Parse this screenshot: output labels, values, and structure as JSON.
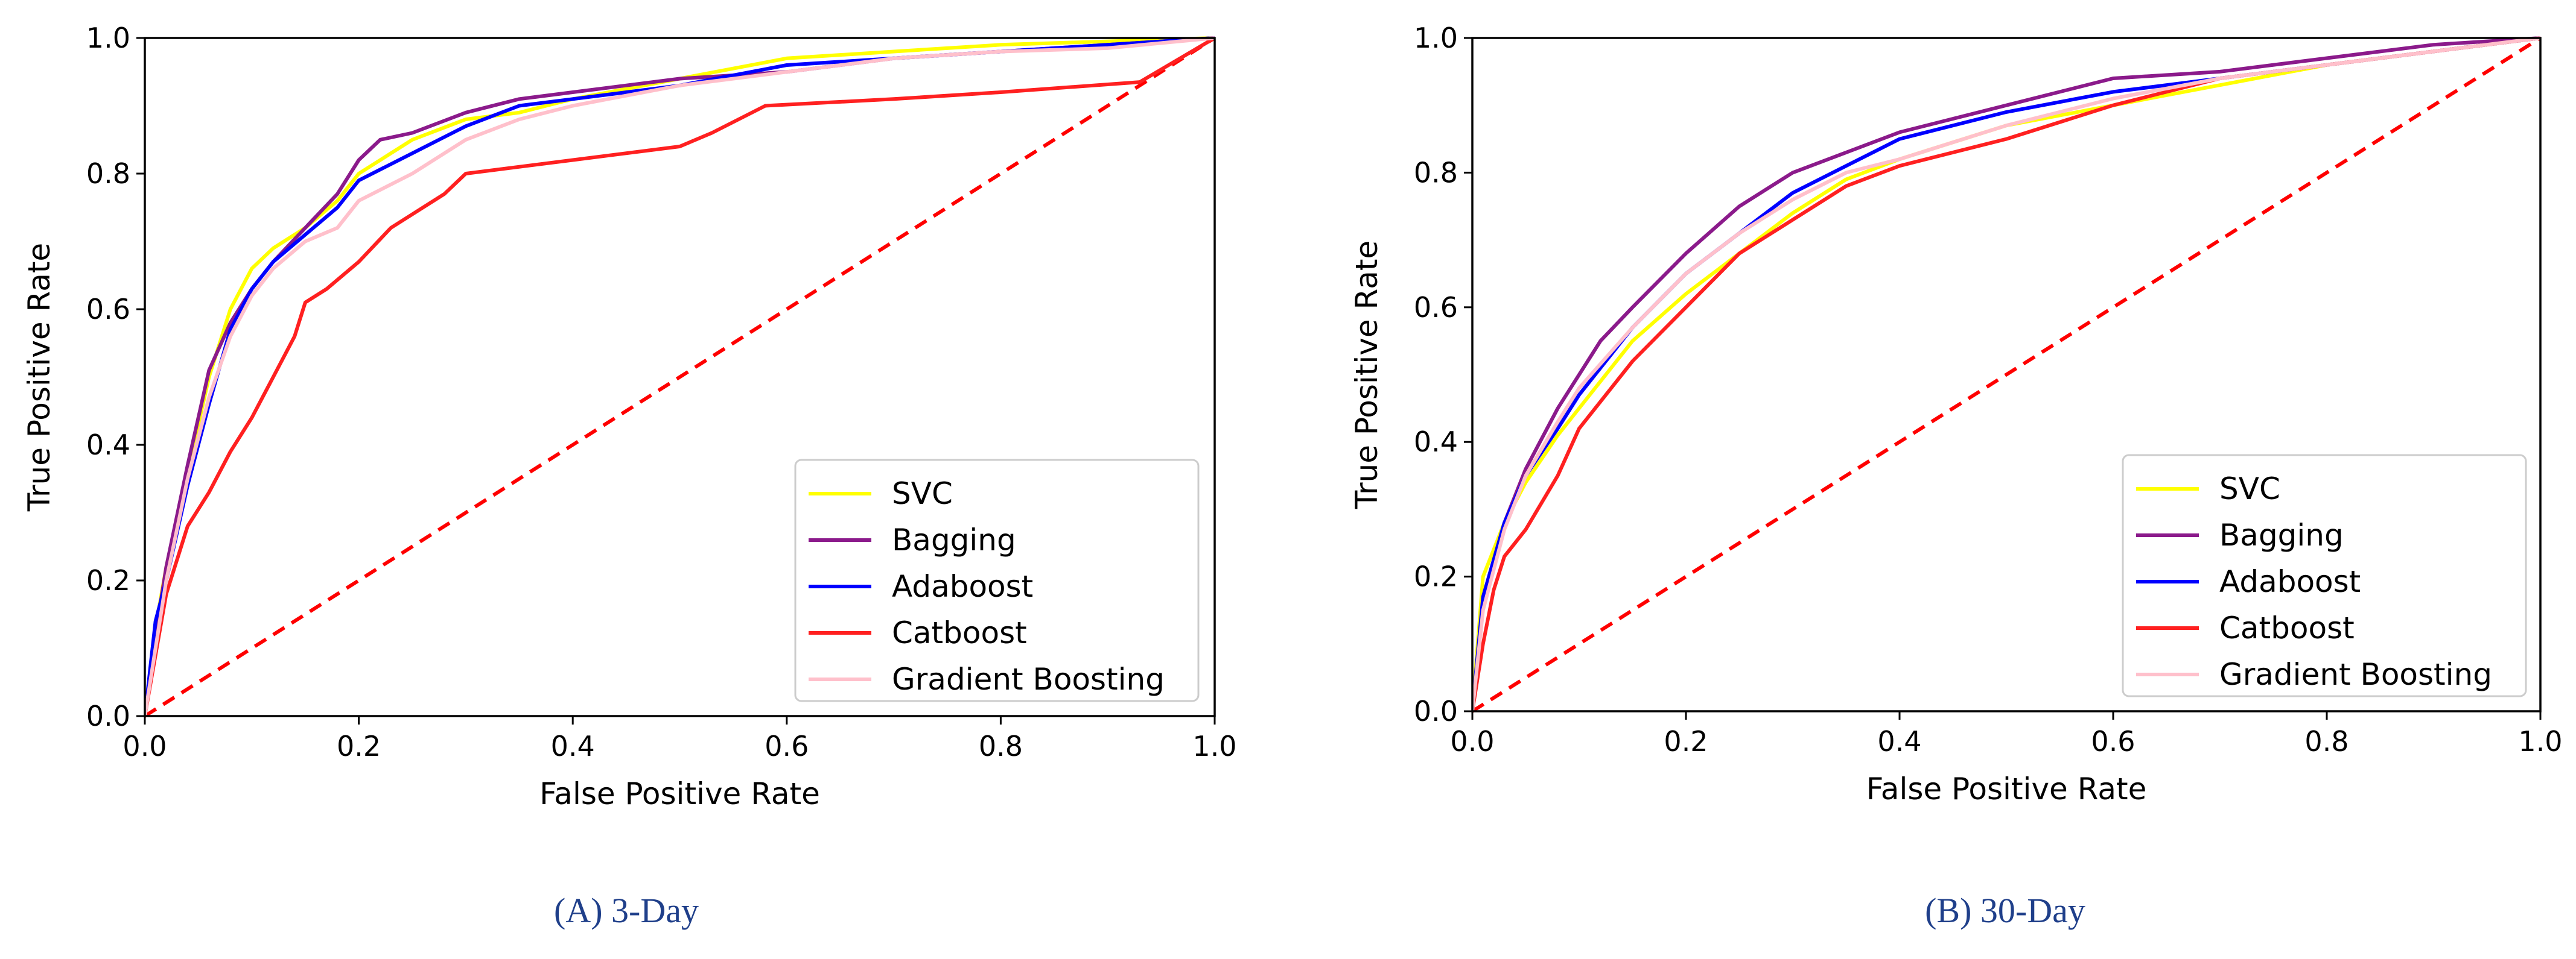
{
  "chart_data": [
    {
      "type": "line",
      "caption": "(A) 3-Day",
      "xlabel": "False Positive Rate",
      "ylabel": "True Positive Rate",
      "xlim": [
        0,
        1
      ],
      "ylim": [
        0,
        1
      ],
      "xticks": [
        "0.0",
        "0.2",
        "0.4",
        "0.6",
        "0.8",
        "1.0"
      ],
      "yticks": [
        "0.0",
        "0.2",
        "0.4",
        "0.6",
        "0.8",
        "1.0"
      ],
      "legend_position": "lower-right",
      "diagonal": {
        "name": "chance",
        "color": "#ff0000",
        "style": "dashed",
        "x": [
          0,
          1
        ],
        "y": [
          0,
          1
        ]
      },
      "series": [
        {
          "name": "SVC",
          "color": "#ffff00",
          "x": [
            0,
            0.01,
            0.02,
            0.04,
            0.06,
            0.08,
            0.1,
            0.12,
            0.15,
            0.18,
            0.2,
            0.25,
            0.3,
            0.35,
            0.4,
            0.5,
            0.6,
            0.7,
            0.8,
            0.9,
            1.0
          ],
          "y": [
            0,
            0.13,
            0.22,
            0.36,
            0.5,
            0.6,
            0.66,
            0.69,
            0.72,
            0.76,
            0.8,
            0.85,
            0.88,
            0.89,
            0.91,
            0.94,
            0.97,
            0.98,
            0.99,
            0.995,
            1.0
          ]
        },
        {
          "name": "Bagging",
          "color": "#8b1a8b",
          "x": [
            0,
            0.01,
            0.02,
            0.04,
            0.06,
            0.08,
            0.1,
            0.12,
            0.15,
            0.18,
            0.2,
            0.22,
            0.25,
            0.3,
            0.35,
            0.4,
            0.5,
            0.6,
            0.7,
            0.8,
            0.9,
            1.0
          ],
          "y": [
            0,
            0.12,
            0.22,
            0.37,
            0.51,
            0.58,
            0.63,
            0.67,
            0.72,
            0.77,
            0.82,
            0.85,
            0.86,
            0.89,
            0.91,
            0.92,
            0.94,
            0.95,
            0.97,
            0.98,
            0.99,
            1.0
          ]
        },
        {
          "name": "Adaboost",
          "color": "#0000ff",
          "x": [
            0,
            0.01,
            0.02,
            0.04,
            0.06,
            0.08,
            0.1,
            0.12,
            0.15,
            0.18,
            0.2,
            0.25,
            0.3,
            0.35,
            0.4,
            0.5,
            0.6,
            0.7,
            0.8,
            0.9,
            1.0
          ],
          "y": [
            0,
            0.14,
            0.2,
            0.34,
            0.46,
            0.57,
            0.63,
            0.67,
            0.71,
            0.75,
            0.79,
            0.83,
            0.87,
            0.9,
            0.91,
            0.93,
            0.96,
            0.97,
            0.98,
            0.99,
            1.0
          ]
        },
        {
          "name": "Catboost",
          "color": "#ff2020",
          "x": [
            0,
            0.02,
            0.04,
            0.06,
            0.08,
            0.1,
            0.12,
            0.14,
            0.15,
            0.17,
            0.2,
            0.23,
            0.28,
            0.3,
            0.4,
            0.5,
            0.53,
            0.58,
            0.7,
            0.8,
            0.93,
            1.0
          ],
          "y": [
            0,
            0.18,
            0.28,
            0.33,
            0.39,
            0.44,
            0.5,
            0.56,
            0.61,
            0.63,
            0.67,
            0.72,
            0.77,
            0.8,
            0.82,
            0.84,
            0.86,
            0.9,
            0.91,
            0.92,
            0.935,
            1.0
          ]
        },
        {
          "name": "Gradient Boosting",
          "color": "#ffc0cb",
          "x": [
            0,
            0.01,
            0.02,
            0.04,
            0.06,
            0.08,
            0.1,
            0.12,
            0.15,
            0.18,
            0.2,
            0.25,
            0.3,
            0.35,
            0.4,
            0.5,
            0.6,
            0.7,
            0.8,
            0.9,
            1.0
          ],
          "y": [
            0,
            0.1,
            0.2,
            0.35,
            0.47,
            0.56,
            0.62,
            0.66,
            0.7,
            0.72,
            0.76,
            0.8,
            0.85,
            0.88,
            0.9,
            0.93,
            0.95,
            0.97,
            0.98,
            0.985,
            1.0
          ]
        }
      ]
    },
    {
      "type": "line",
      "caption": "(B) 30-Day",
      "xlabel": "False Positive Rate",
      "ylabel": "True Positive Rate",
      "xlim": [
        0,
        1
      ],
      "ylim": [
        0,
        1
      ],
      "xticks": [
        "0.0",
        "0.2",
        "0.4",
        "0.6",
        "0.8",
        "1.0"
      ],
      "yticks": [
        "0.0",
        "0.2",
        "0.4",
        "0.6",
        "0.8",
        "1.0"
      ],
      "legend_position": "lower-right",
      "diagonal": {
        "name": "chance",
        "color": "#ff0000",
        "style": "dashed",
        "x": [
          0,
          1
        ],
        "y": [
          0,
          1
        ]
      },
      "series": [
        {
          "name": "SVC",
          "color": "#ffff00",
          "x": [
            0,
            0.01,
            0.03,
            0.05,
            0.08,
            0.1,
            0.15,
            0.2,
            0.25,
            0.3,
            0.35,
            0.4,
            0.5,
            0.6,
            0.7,
            0.8,
            0.9,
            1.0
          ],
          "y": [
            0,
            0.2,
            0.28,
            0.34,
            0.41,
            0.45,
            0.55,
            0.62,
            0.68,
            0.74,
            0.79,
            0.82,
            0.87,
            0.9,
            0.93,
            0.96,
            0.98,
            1.0
          ]
        },
        {
          "name": "Bagging",
          "color": "#8b1a8b",
          "x": [
            0,
            0.01,
            0.03,
            0.05,
            0.08,
            0.1,
            0.12,
            0.15,
            0.2,
            0.25,
            0.3,
            0.35,
            0.4,
            0.5,
            0.6,
            0.7,
            0.8,
            0.9,
            1.0
          ],
          "y": [
            0,
            0.16,
            0.28,
            0.36,
            0.45,
            0.5,
            0.55,
            0.6,
            0.68,
            0.75,
            0.8,
            0.83,
            0.86,
            0.9,
            0.94,
            0.95,
            0.97,
            0.99,
            1.0
          ]
        },
        {
          "name": "Adaboost",
          "color": "#0000ff",
          "x": [
            0,
            0.01,
            0.03,
            0.05,
            0.08,
            0.1,
            0.15,
            0.2,
            0.25,
            0.3,
            0.35,
            0.4,
            0.5,
            0.6,
            0.7,
            0.8,
            0.9,
            1.0
          ],
          "y": [
            0,
            0.17,
            0.28,
            0.35,
            0.42,
            0.47,
            0.57,
            0.65,
            0.71,
            0.77,
            0.81,
            0.85,
            0.89,
            0.92,
            0.94,
            0.96,
            0.98,
            1.0
          ]
        },
        {
          "name": "Catboost",
          "color": "#ff2020",
          "x": [
            0,
            0.01,
            0.02,
            0.03,
            0.05,
            0.08,
            0.1,
            0.15,
            0.2,
            0.25,
            0.3,
            0.35,
            0.4,
            0.5,
            0.6,
            0.7,
            0.8,
            0.9,
            1.0
          ],
          "y": [
            0,
            0.1,
            0.18,
            0.23,
            0.27,
            0.35,
            0.42,
            0.52,
            0.6,
            0.68,
            0.73,
            0.78,
            0.81,
            0.85,
            0.9,
            0.94,
            0.96,
            0.98,
            1.0
          ]
        },
        {
          "name": "Gradient Boosting",
          "color": "#ffc0cb",
          "x": [
            0,
            0.01,
            0.03,
            0.05,
            0.08,
            0.1,
            0.15,
            0.2,
            0.25,
            0.3,
            0.35,
            0.4,
            0.5,
            0.6,
            0.7,
            0.8,
            0.9,
            1.0
          ],
          "y": [
            0,
            0.15,
            0.27,
            0.35,
            0.43,
            0.48,
            0.57,
            0.65,
            0.71,
            0.76,
            0.8,
            0.82,
            0.87,
            0.91,
            0.94,
            0.96,
            0.98,
            1.0
          ]
        }
      ]
    }
  ]
}
